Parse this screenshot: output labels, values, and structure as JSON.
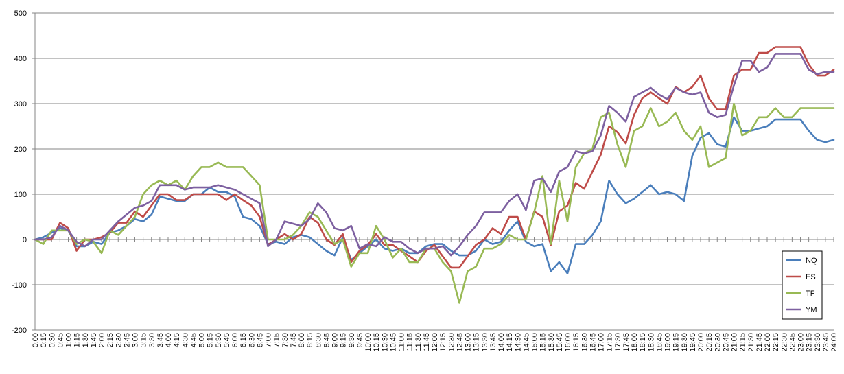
{
  "chart_data": {
    "type": "line",
    "title": "",
    "xlabel": "",
    "ylabel": "",
    "ylim": [
      -200,
      500
    ],
    "yticks": [
      -200,
      -100,
      0,
      100,
      200,
      300,
      400,
      500
    ],
    "grid": "horizontal",
    "legend_position": "bottom-right",
    "x": [
      "0:00",
      "0:15",
      "0:30",
      "0:45",
      "1:00",
      "1:15",
      "1:30",
      "1:45",
      "2:00",
      "2:15",
      "2:30",
      "2:45",
      "3:00",
      "3:15",
      "3:30",
      "3:45",
      "4:00",
      "4:15",
      "4:30",
      "4:45",
      "5:00",
      "5:15",
      "5:30",
      "5:45",
      "6:00",
      "6:15",
      "6:30",
      "6:45",
      "7:00",
      "7:15",
      "7:30",
      "7:45",
      "8:00",
      "8:15",
      "8:30",
      "8:45",
      "9:00",
      "9:15",
      "9:30",
      "9:45",
      "10:00",
      "10:15",
      "10:30",
      "10:45",
      "11:00",
      "11:15",
      "11:30",
      "11:45",
      "12:00",
      "12:15",
      "12:30",
      "12:45",
      "13:00",
      "13:15",
      "13:30",
      "13:45",
      "14:00",
      "14:15",
      "14:30",
      "14:45",
      "15:00",
      "15:15",
      "15:30",
      "15:45",
      "16:00",
      "16:15",
      "16:30",
      "16:45",
      "17:00",
      "17:15",
      "17:30",
      "17:45",
      "18:00",
      "18:15",
      "18:30",
      "18:45",
      "19:00",
      "19:15",
      "19:30",
      "19:45",
      "20:00",
      "20:15",
      "20:30",
      "20:45",
      "21:00",
      "21:15",
      "21:30",
      "21:45",
      "22:00",
      "22:15",
      "22:30",
      "22:45",
      "23:00",
      "23:15",
      "23:30",
      "23:45",
      "24:00"
    ],
    "series": [
      {
        "name": "NQ",
        "color": "#4a7ebb",
        "values": [
          0,
          5,
          15,
          25,
          20,
          -15,
          -15,
          -5,
          -10,
          15,
          20,
          30,
          45,
          40,
          55,
          95,
          90,
          85,
          85,
          100,
          100,
          115,
          105,
          105,
          95,
          50,
          45,
          30,
          -10,
          -5,
          -10,
          5,
          10,
          5,
          -10,
          -25,
          -35,
          5,
          -45,
          -30,
          -15,
          0,
          -20,
          -25,
          -20,
          -30,
          -30,
          -15,
          -10,
          -10,
          -25,
          -35,
          -35,
          -25,
          0,
          -10,
          -5,
          20,
          40,
          -5,
          -15,
          -10,
          -70,
          -50,
          -75,
          -10,
          -10,
          10,
          40,
          130,
          100,
          80,
          90,
          105,
          120,
          100,
          105,
          100,
          85,
          185,
          225,
          235,
          210,
          205,
          270,
          240,
          240,
          245,
          250,
          265,
          265,
          265,
          265,
          240,
          220,
          215,
          220
        ]
      },
      {
        "name": "ES",
        "color": "#be4b48",
        "values": [
          0,
          0,
          0,
          37,
          25,
          -25,
          0,
          0,
          5,
          15,
          37,
          37,
          62,
          50,
          75,
          100,
          100,
          87,
          87,
          100,
          100,
          100,
          100,
          87,
          100,
          87,
          75,
          50,
          -12,
          0,
          12,
          0,
          12,
          50,
          37,
          0,
          -12,
          12,
          -50,
          -25,
          -12,
          12,
          -12,
          -12,
          -25,
          -37,
          -50,
          -25,
          -12,
          -37,
          -62,
          -62,
          -37,
          -12,
          0,
          25,
          12,
          50,
          50,
          0,
          62,
          50,
          -12,
          62,
          75,
          125,
          112,
          150,
          187,
          250,
          237,
          212,
          275,
          312,
          325,
          312,
          300,
          337,
          325,
          337,
          362,
          312,
          287,
          287,
          362,
          375,
          375,
          412,
          412,
          425,
          425,
          425,
          425,
          387,
          362,
          362,
          375
        ]
      },
      {
        "name": "TF",
        "color": "#98b954",
        "values": [
          0,
          -10,
          20,
          20,
          20,
          -10,
          0,
          -5,
          -30,
          20,
          10,
          30,
          50,
          100,
          120,
          130,
          120,
          130,
          110,
          140,
          160,
          160,
          170,
          160,
          160,
          160,
          140,
          120,
          0,
          0,
          0,
          10,
          30,
          60,
          50,
          20,
          -10,
          0,
          -60,
          -30,
          -30,
          30,
          0,
          -40,
          -20,
          -50,
          -50,
          -20,
          -20,
          -50,
          -70,
          -140,
          -70,
          -60,
          -20,
          -20,
          -10,
          10,
          0,
          0,
          60,
          140,
          -10,
          130,
          40,
          160,
          190,
          200,
          270,
          280,
          210,
          160,
          240,
          250,
          290,
          250,
          260,
          280,
          240,
          220,
          250,
          160,
          170,
          180,
          300,
          230,
          240,
          270,
          270,
          290,
          270,
          270,
          290,
          290,
          290,
          290,
          290
        ]
      },
      {
        "name": "YM",
        "color": "#7d60a0",
        "values": [
          0,
          0,
          5,
          30,
          20,
          -5,
          -15,
          0,
          0,
          20,
          40,
          55,
          70,
          75,
          85,
          120,
          120,
          120,
          110,
          115,
          115,
          115,
          120,
          115,
          110,
          100,
          90,
          80,
          -15,
          0,
          40,
          35,
          30,
          45,
          80,
          60,
          25,
          20,
          30,
          -20,
          -10,
          -15,
          5,
          -5,
          -5,
          -20,
          -30,
          -20,
          -20,
          -15,
          -35,
          -15,
          10,
          30,
          60,
          60,
          60,
          85,
          100,
          65,
          130,
          135,
          105,
          150,
          160,
          195,
          190,
          195,
          230,
          295,
          280,
          260,
          315,
          325,
          335,
          320,
          310,
          335,
          325,
          320,
          325,
          280,
          270,
          275,
          340,
          395,
          395,
          370,
          380,
          410,
          410,
          410,
          410,
          375,
          365,
          370,
          370
        ]
      }
    ]
  }
}
